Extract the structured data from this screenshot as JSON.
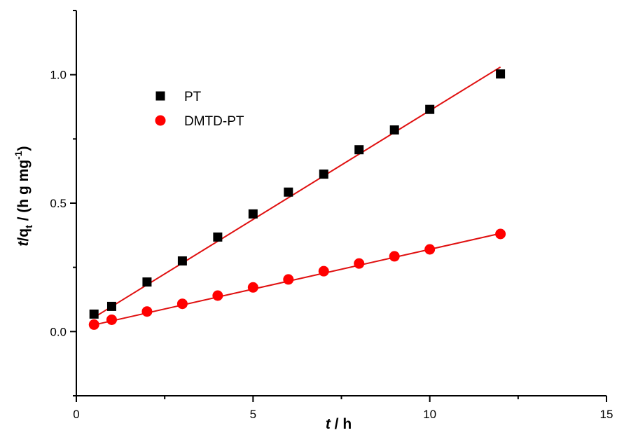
{
  "chart_data": {
    "type": "scatter",
    "xlim": [
      0,
      15
    ],
    "ylim": [
      -0.25,
      1.25
    ],
    "x_ticks": [
      0,
      5,
      10,
      15
    ],
    "x_tick_labels": [
      "0",
      "5",
      "10",
      "15"
    ],
    "y_ticks": [
      0.0,
      0.5,
      1.0
    ],
    "y_tick_labels": [
      "0.0",
      "0.5",
      "1.0"
    ],
    "xlabel": {
      "italic": "t",
      "rest": " / h"
    },
    "ylabel": {
      "italic": "t",
      "part1": "/q",
      "sub": "t",
      "part2": " / (h g mg",
      "sup": "-1",
      "part3": ")"
    },
    "legend_position": "upper-left",
    "grid": false,
    "series": [
      {
        "name": "PT",
        "marker": "square",
        "color": "#000000",
        "x": [
          0.5,
          1,
          2,
          3,
          4,
          5,
          6,
          7,
          8,
          9,
          10,
          12
        ],
        "y": [
          0.068,
          0.098,
          0.193,
          0.275,
          0.368,
          0.458,
          0.543,
          0.613,
          0.708,
          0.785,
          0.865,
          1.003
        ],
        "fit_line": {
          "x": [
            0.5,
            12
          ],
          "y": [
            0.055,
            1.03
          ],
          "color": "#e01010"
        }
      },
      {
        "name": "DMTD-PT",
        "marker": "circle",
        "color": "#ff0000",
        "x": [
          0.5,
          1,
          2,
          3,
          4,
          5,
          6,
          7,
          8,
          9,
          10,
          12
        ],
        "y": [
          0.027,
          0.046,
          0.078,
          0.108,
          0.14,
          0.172,
          0.203,
          0.235,
          0.265,
          0.293,
          0.32,
          0.38
        ],
        "fit_line": {
          "x": [
            0.5,
            12
          ],
          "y": [
            0.026,
            0.382
          ],
          "color": "#e01010"
        }
      }
    ]
  }
}
